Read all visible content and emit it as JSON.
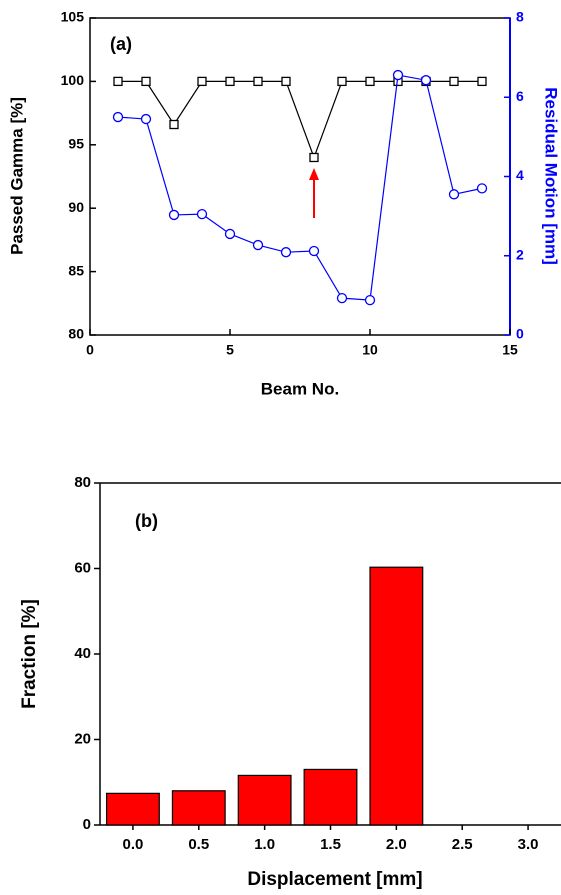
{
  "chart_data": [
    {
      "type": "line",
      "annotation": "(a)",
      "xlabel": "Beam No.",
      "ylabel": "Passed Gamma [%]",
      "y2label": "Residual Motion [mm]",
      "x": [
        1,
        2,
        3,
        4,
        5,
        6,
        7,
        8,
        9,
        10,
        11,
        12,
        13,
        14
      ],
      "xlim": [
        0,
        15
      ],
      "xticks": [
        0,
        5,
        10,
        15
      ],
      "ylim": [
        80,
        105
      ],
      "yticks": [
        80,
        85,
        90,
        95,
        100,
        105
      ],
      "y2lim": [
        0,
        8
      ],
      "y2ticks": [
        0,
        2,
        4,
        6,
        8
      ],
      "series": [
        {
          "name": "Passed Gamma",
          "color": "#000000",
          "marker": "square",
          "values": [
            100,
            100,
            96.6,
            100,
            100,
            100,
            100,
            94,
            100,
            100,
            100,
            100,
            100,
            100
          ]
        },
        {
          "name": "Residual Motion",
          "color": "#0000ff",
          "marker": "circle",
          "axis": "y2",
          "values": [
            5.5,
            5.45,
            3.03,
            3.05,
            2.55,
            2.27,
            2.09,
            2.12,
            0.93,
            0.88,
            6.56,
            6.43,
            3.55,
            3.7
          ]
        }
      ]
    },
    {
      "type": "bar",
      "annotation": "(b)",
      "xlabel": "Displacement [mm]",
      "ylabel": "Fraction [%]",
      "categories": [
        "0.0",
        "0.5",
        "1.0",
        "1.5",
        "2.0",
        "2.5",
        "3.0"
      ],
      "values": [
        7.4,
        8,
        11.6,
        13,
        60.3,
        0,
        0
      ],
      "color": "#ff0000",
      "ylim": [
        0,
        80
      ],
      "yticks": [
        0,
        20,
        40,
        60,
        80
      ]
    }
  ]
}
